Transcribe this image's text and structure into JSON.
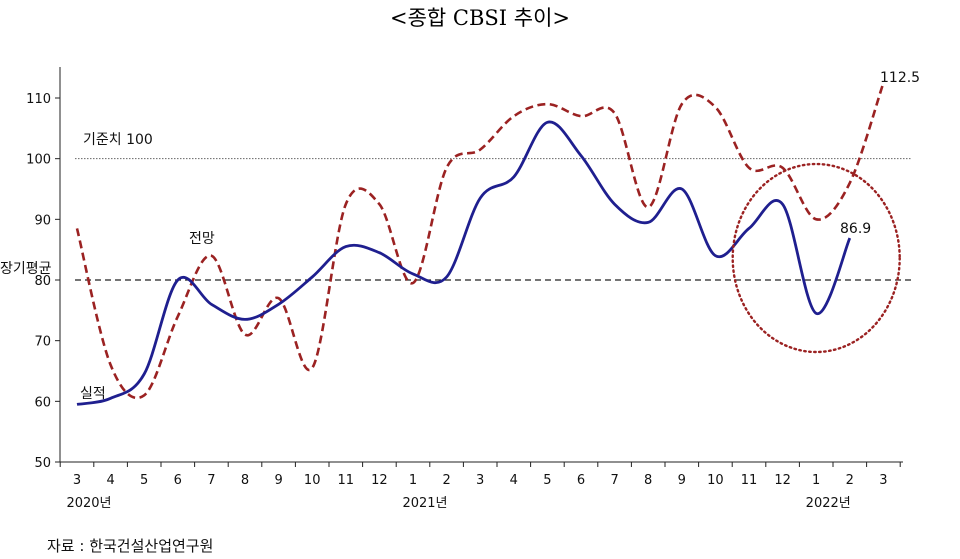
{
  "chart_data": {
    "type": "line",
    "title": "<종합 CBSI 추이>",
    "x": [
      "3",
      "4",
      "5",
      "6",
      "7",
      "8",
      "9",
      "10",
      "11",
      "12",
      "1",
      "2",
      "3",
      "4",
      "5",
      "6",
      "7",
      "8",
      "9",
      "10",
      "11",
      "12",
      "1",
      "2",
      "3"
    ],
    "year_labels": [
      {
        "label": "2020년",
        "index": 0
      },
      {
        "label": "2021년",
        "index": 10
      },
      {
        "label": "2022년",
        "index": 22
      }
    ],
    "ylim": [
      50,
      115
    ],
    "yticks": [
      50,
      60,
      70,
      80,
      90,
      100,
      110
    ],
    "series": [
      {
        "name": "실적",
        "color": "#1f1f8f",
        "style": "solid",
        "values": [
          59.5,
          60.5,
          64.5,
          80.0,
          76.0,
          73.5,
          76.0,
          80.5,
          85.5,
          84.5,
          81.0,
          80.5,
          93.5,
          97.0,
          106.0,
          100.5,
          92.5,
          89.5,
          95.0,
          84.0,
          88.5,
          92.5,
          74.5,
          86.9,
          null
        ]
      },
      {
        "name": "전망",
        "color": "#9b2222",
        "style": "dashed",
        "values": [
          88.5,
          66.0,
          61.0,
          74.0,
          84.0,
          71.0,
          77.0,
          65.5,
          92.5,
          92.5,
          79.5,
          98.5,
          101.5,
          107.0,
          109.0,
          107.0,
          107.5,
          92.0,
          109.0,
          108.5,
          98.5,
          98.5,
          90.0,
          96.0,
          112.5
        ]
      }
    ],
    "reference_lines": [
      {
        "label": "기준치 100",
        "value": 100,
        "style": "dotted"
      },
      {
        "label": "장기평균",
        "value": 80,
        "style": "dashed"
      }
    ],
    "annotations": [
      {
        "text": "112.5"
      },
      {
        "text": "86.9"
      }
    ],
    "highlight": {
      "type": "dotted-ellipse",
      "from_index": 19.5,
      "to_index": 24.5
    },
    "source": "자료 : 한국건설산업연구원",
    "grid": false
  }
}
